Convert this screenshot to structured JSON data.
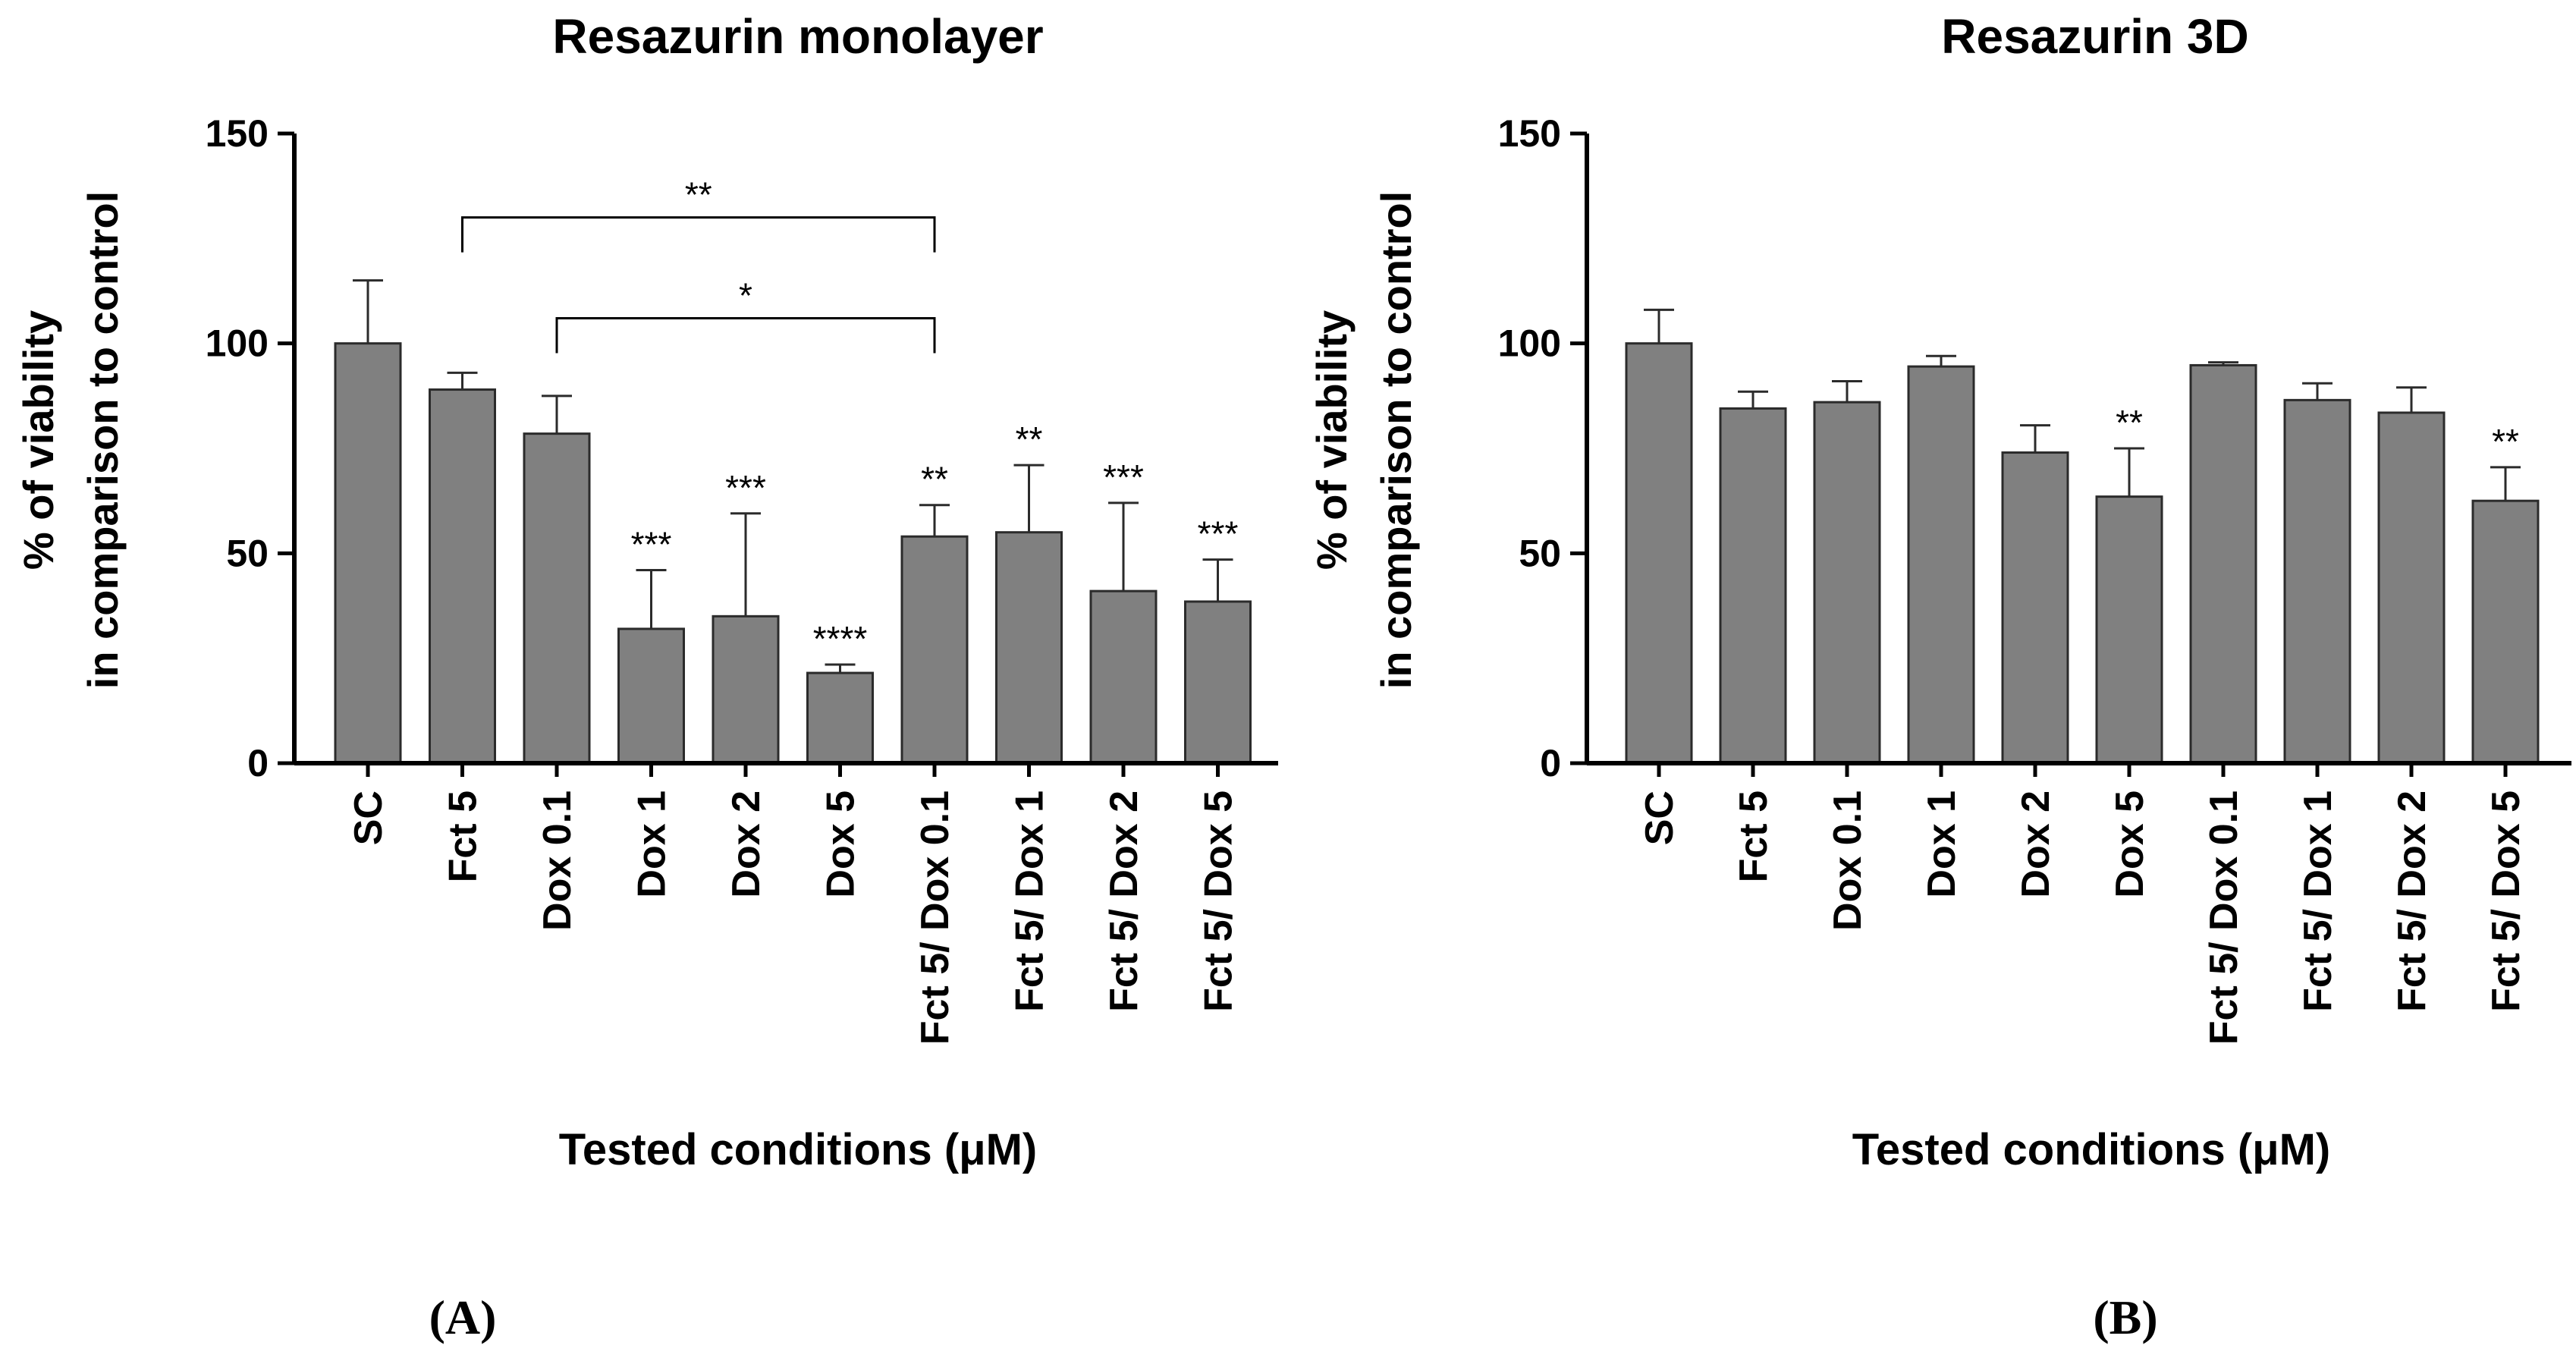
{
  "chart_data": [
    {
      "type": "bar",
      "title": "Resazurin monolayer",
      "xlabel": "Tested conditions (μM)",
      "ylabel_lines": [
        "% of viability",
        "in comparison to control"
      ],
      "ylim": [
        0,
        150
      ],
      "yticks": [
        "0",
        "50",
        "100",
        "150"
      ],
      "categories": [
        "SC",
        "Fct 5",
        "Dox 0.1",
        "Dox 1",
        "Dox 2",
        "Dox 5",
        "Fct 5/ Dox 0.1",
        "Fct 5/ Dox 1",
        "Fct 5/ Dox 2",
        "Fct 5/ Dox 5"
      ],
      "values": [
        100,
        89,
        78.5,
        32,
        35,
        21.5,
        54,
        55,
        41,
        38.5
      ],
      "errors": [
        15,
        4,
        9,
        14,
        24.5,
        2,
        7.5,
        16,
        21,
        10
      ],
      "significance": [
        "",
        "",
        "",
        "***",
        "***",
        "****",
        "**",
        "**",
        "***",
        "***"
      ],
      "brackets": [
        {
          "from": 1,
          "to": 6,
          "level": 130,
          "label": "**"
        },
        {
          "from": 2,
          "to": 6,
          "level": 106,
          "label": "*"
        }
      ],
      "bar_color": "#808080",
      "panel_label": "(A)"
    },
    {
      "type": "bar",
      "title": "Resazurin 3D",
      "xlabel": "Tested conditions (μM)",
      "ylabel_lines": [
        "% of viability",
        "in comparison to control"
      ],
      "ylim": [
        0,
        150
      ],
      "yticks": [
        "0",
        "50",
        "100",
        "150"
      ],
      "categories": [
        "SC",
        "Fct 5",
        "Dox 0.1",
        "Dox 1",
        "Dox 2",
        "Dox 5",
        "Fct 5/ Dox 0.1",
        "Fct 5/ Dox 1",
        "Fct 5/ Dox 2",
        "Fct 5/ Dox 5"
      ],
      "values": [
        100,
        84.5,
        86,
        94.5,
        74,
        63.5,
        94.8,
        86.5,
        83.5,
        62.5
      ],
      "errors": [
        8,
        4,
        5,
        2.5,
        6.5,
        11.5,
        0.7,
        4,
        6,
        8
      ],
      "significance": [
        "",
        "",
        "",
        "",
        "",
        "**",
        "",
        "",
        "",
        "**"
      ],
      "brackets": [],
      "bar_color": "#808080",
      "panel_label": "(B)"
    }
  ]
}
